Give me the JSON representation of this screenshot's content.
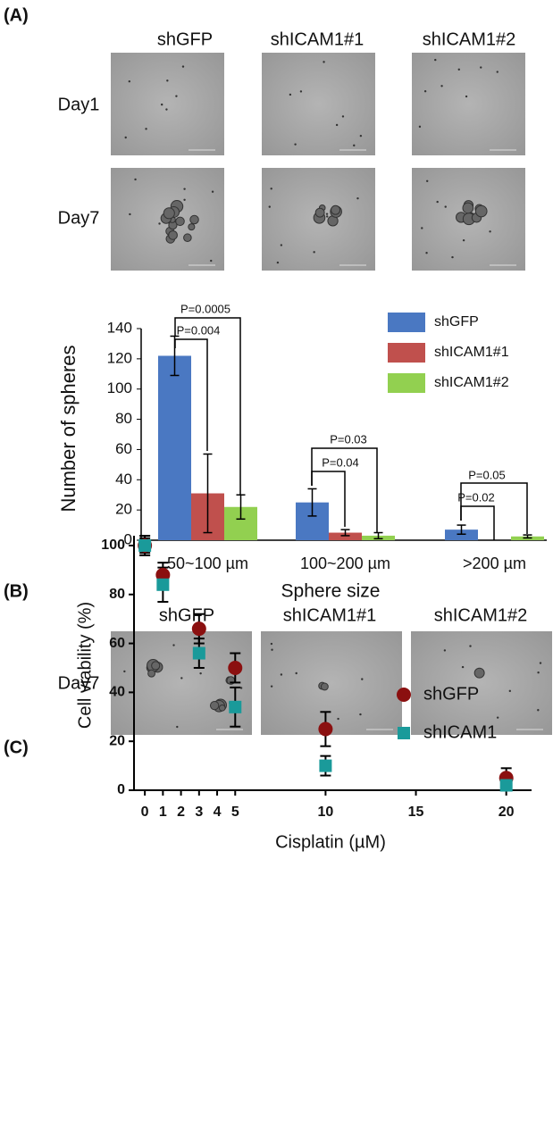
{
  "panels": [
    {
      "label": "(A)"
    },
    {
      "label": "(B)"
    },
    {
      "label": "(C)"
    }
  ],
  "panel_a_images": {
    "columns": [
      "shGFP",
      "shICAM1#1",
      "shICAM1#2"
    ],
    "rows": [
      "Day1",
      "Day7"
    ]
  },
  "panel_b_images": {
    "columns": [
      "shGFP",
      "shICAM1#1",
      "shICAM1#2"
    ],
    "rows": [
      "Day7"
    ]
  },
  "chart_data": [
    {
      "type": "bar",
      "ylabel": "Number of spheres",
      "xlabel": "Sphere size",
      "categories": [
        "50~100 µm",
        "100~200 µm",
        ">200 µm"
      ],
      "series": [
        {
          "name": "shGFP",
          "color": "#4a78c2",
          "values": [
            122,
            25,
            7
          ],
          "errors": [
            13,
            9,
            3
          ]
        },
        {
          "name": "shICAM1#1",
          "color": "#c0504d",
          "values": [
            31,
            5,
            0
          ],
          "errors": [
            26,
            2,
            0
          ]
        },
        {
          "name": "shICAM1#2",
          "color": "#92d050",
          "values": [
            22,
            3,
            2.5
          ],
          "errors": [
            8,
            2,
            1
          ]
        }
      ],
      "ylim": [
        0,
        140
      ],
      "yticks": [
        0,
        20,
        40,
        60,
        80,
        100,
        120,
        140
      ],
      "annotations": [
        "P=0.0005",
        "P=0.004",
        "P=0.03",
        "P=0.04",
        "P=0.05",
        "P=0.02"
      ],
      "legend": "upper right"
    },
    {
      "type": "scatter",
      "xlabel": "Cisplatin (µM)",
      "ylabel": "Cell viability (%)",
      "x": [
        0,
        1,
        3,
        5,
        10,
        20
      ],
      "series": [
        {
          "name": "shGFP",
          "color": "#8b1010",
          "marker": "circle",
          "values": [
            100,
            88,
            66,
            50,
            25,
            5
          ],
          "errors": [
            4,
            5,
            6,
            6,
            7,
            4
          ]
        },
        {
          "name": "shICAM1",
          "color": "#1a9a9a",
          "marker": "square",
          "values": [
            100,
            84,
            56,
            34,
            10,
            2
          ],
          "errors": [
            3,
            7,
            6,
            8,
            4,
            2
          ]
        }
      ],
      "xlim": [
        -0.6,
        21.4
      ],
      "ylim": [
        0,
        104
      ],
      "xticks": [
        0,
        1,
        2,
        3,
        4,
        5,
        10,
        15,
        20
      ],
      "yticks": [
        0,
        20,
        40,
        60,
        80,
        100
      ],
      "legend": "upper right"
    }
  ]
}
